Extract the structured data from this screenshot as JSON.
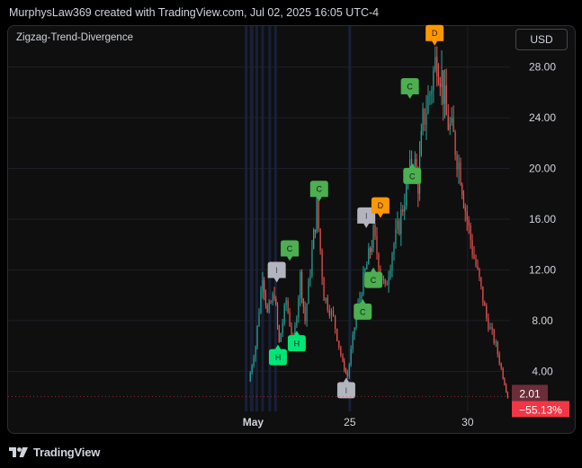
{
  "header": {
    "text": "MurphysLaw369 created with TradingView.com, Jul 02, 2025 16:05 UTC-4"
  },
  "indicator": {
    "name": "Zigzag-Trend-Divergence"
  },
  "toolbar": {
    "currency": "USD"
  },
  "footer": {
    "brand": "TradingView",
    "logo_icon": "tradingview-logo-icon"
  },
  "colors": {
    "background": "#0f0f0f",
    "grid": "#1e2029",
    "up": "#26a69a",
    "down": "#ef5350",
    "marker_green": "#4caf50",
    "marker_bright_green": "#00e676",
    "marker_orange": "#ff9800",
    "marker_gray": "#b2b5be",
    "price_badge": "#6b2d38",
    "change_badge": "#f23645"
  },
  "chart_data": {
    "type": "candlestick",
    "title": "",
    "y_axis": {
      "ticks": [
        "4.00",
        "8.00",
        "12.00",
        "16.00",
        "20.00",
        "24.00",
        "28.00"
      ],
      "range": [
        1.4,
        30.6
      ]
    },
    "x_axis": {
      "ticks": [
        {
          "label": "May",
          "day": 20.9,
          "bold": true
        },
        {
          "label": "25",
          "day": 25
        },
        {
          "label": "30",
          "day": 30
        }
      ],
      "range": [
        10.5,
        31.8
      ]
    },
    "price_path": [
      [
        20.7,
        3.2
      ],
      [
        21.0,
        6.0
      ],
      [
        21.3,
        11.8
      ],
      [
        21.5,
        8.5
      ],
      [
        21.8,
        10.2
      ],
      [
        22.0,
        6.2
      ],
      [
        22.3,
        9.6
      ],
      [
        22.6,
        6.0
      ],
      [
        22.9,
        11.5
      ],
      [
        23.1,
        8.0
      ],
      [
        23.4,
        13.4
      ],
      [
        23.6,
        17.0
      ],
      [
        23.9,
        10.0
      ],
      [
        24.3,
        8.2
      ],
      [
        24.7,
        4.6
      ],
      [
        24.9,
        3.6
      ],
      [
        25.2,
        7.5
      ],
      [
        25.5,
        10.6
      ],
      [
        25.8,
        13.0
      ],
      [
        26.0,
        14.8
      ],
      [
        26.3,
        12.0
      ],
      [
        26.5,
        10.4
      ],
      [
        26.8,
        13.5
      ],
      [
        27.1,
        15.6
      ],
      [
        27.4,
        18.5
      ],
      [
        27.7,
        20.8
      ],
      [
        27.9,
        18.8
      ],
      [
        28.1,
        23.6
      ],
      [
        28.4,
        26.0
      ],
      [
        28.7,
        29.0
      ],
      [
        28.9,
        27.2
      ],
      [
        29.1,
        24.0
      ],
      [
        29.4,
        22.4
      ],
      [
        29.7,
        19.7
      ],
      [
        29.9,
        16.8
      ],
      [
        30.2,
        13.6
      ],
      [
        30.5,
        11.1
      ],
      [
        30.8,
        8.2
      ],
      [
        31.2,
        6.0
      ],
      [
        31.5,
        3.6
      ],
      [
        31.7,
        2.01
      ]
    ],
    "markers": [
      {
        "label": "C",
        "day": 23.7,
        "price": 17.4,
        "color": "green",
        "pointing": "down"
      },
      {
        "label": "C",
        "day": 22.45,
        "price": 12.7,
        "color": "green",
        "pointing": "down"
      },
      {
        "label": "I",
        "day": 21.9,
        "price": 11.0,
        "color": "gray",
        "pointing": "down"
      },
      {
        "label": "H",
        "day": 22.75,
        "price": 7.2,
        "color": "bright_green",
        "pointing": "up"
      },
      {
        "label": "H",
        "day": 21.95,
        "price": 6.1,
        "color": "bright_green",
        "pointing": "up"
      },
      {
        "label": "I",
        "day": 24.85,
        "price": 3.5,
        "color": "gray",
        "pointing": "up"
      },
      {
        "label": "I",
        "day": 25.7,
        "price": 15.3,
        "color": "gray",
        "pointing": "down"
      },
      {
        "label": "D",
        "day": 26.3,
        "price": 16.1,
        "color": "orange",
        "pointing": "down"
      },
      {
        "label": "C",
        "day": 25.55,
        "price": 9.7,
        "color": "green",
        "pointing": "up"
      },
      {
        "label": "C",
        "day": 26.0,
        "price": 12.2,
        "color": "green",
        "pointing": "up"
      },
      {
        "label": "C",
        "day": 27.55,
        "price": 25.5,
        "color": "green",
        "pointing": "down"
      },
      {
        "label": "C",
        "day": 27.65,
        "price": 20.4,
        "color": "green",
        "pointing": "up"
      },
      {
        "label": "D",
        "day": 28.6,
        "price": 29.7,
        "color": "orange",
        "pointing": "down"
      }
    ],
    "last_price": {
      "value": "2.01",
      "change": "−55.13%"
    },
    "session_bands": [
      20.6,
      20.82,
      21.05,
      21.3,
      21.6,
      21.85,
      25.0
    ]
  }
}
